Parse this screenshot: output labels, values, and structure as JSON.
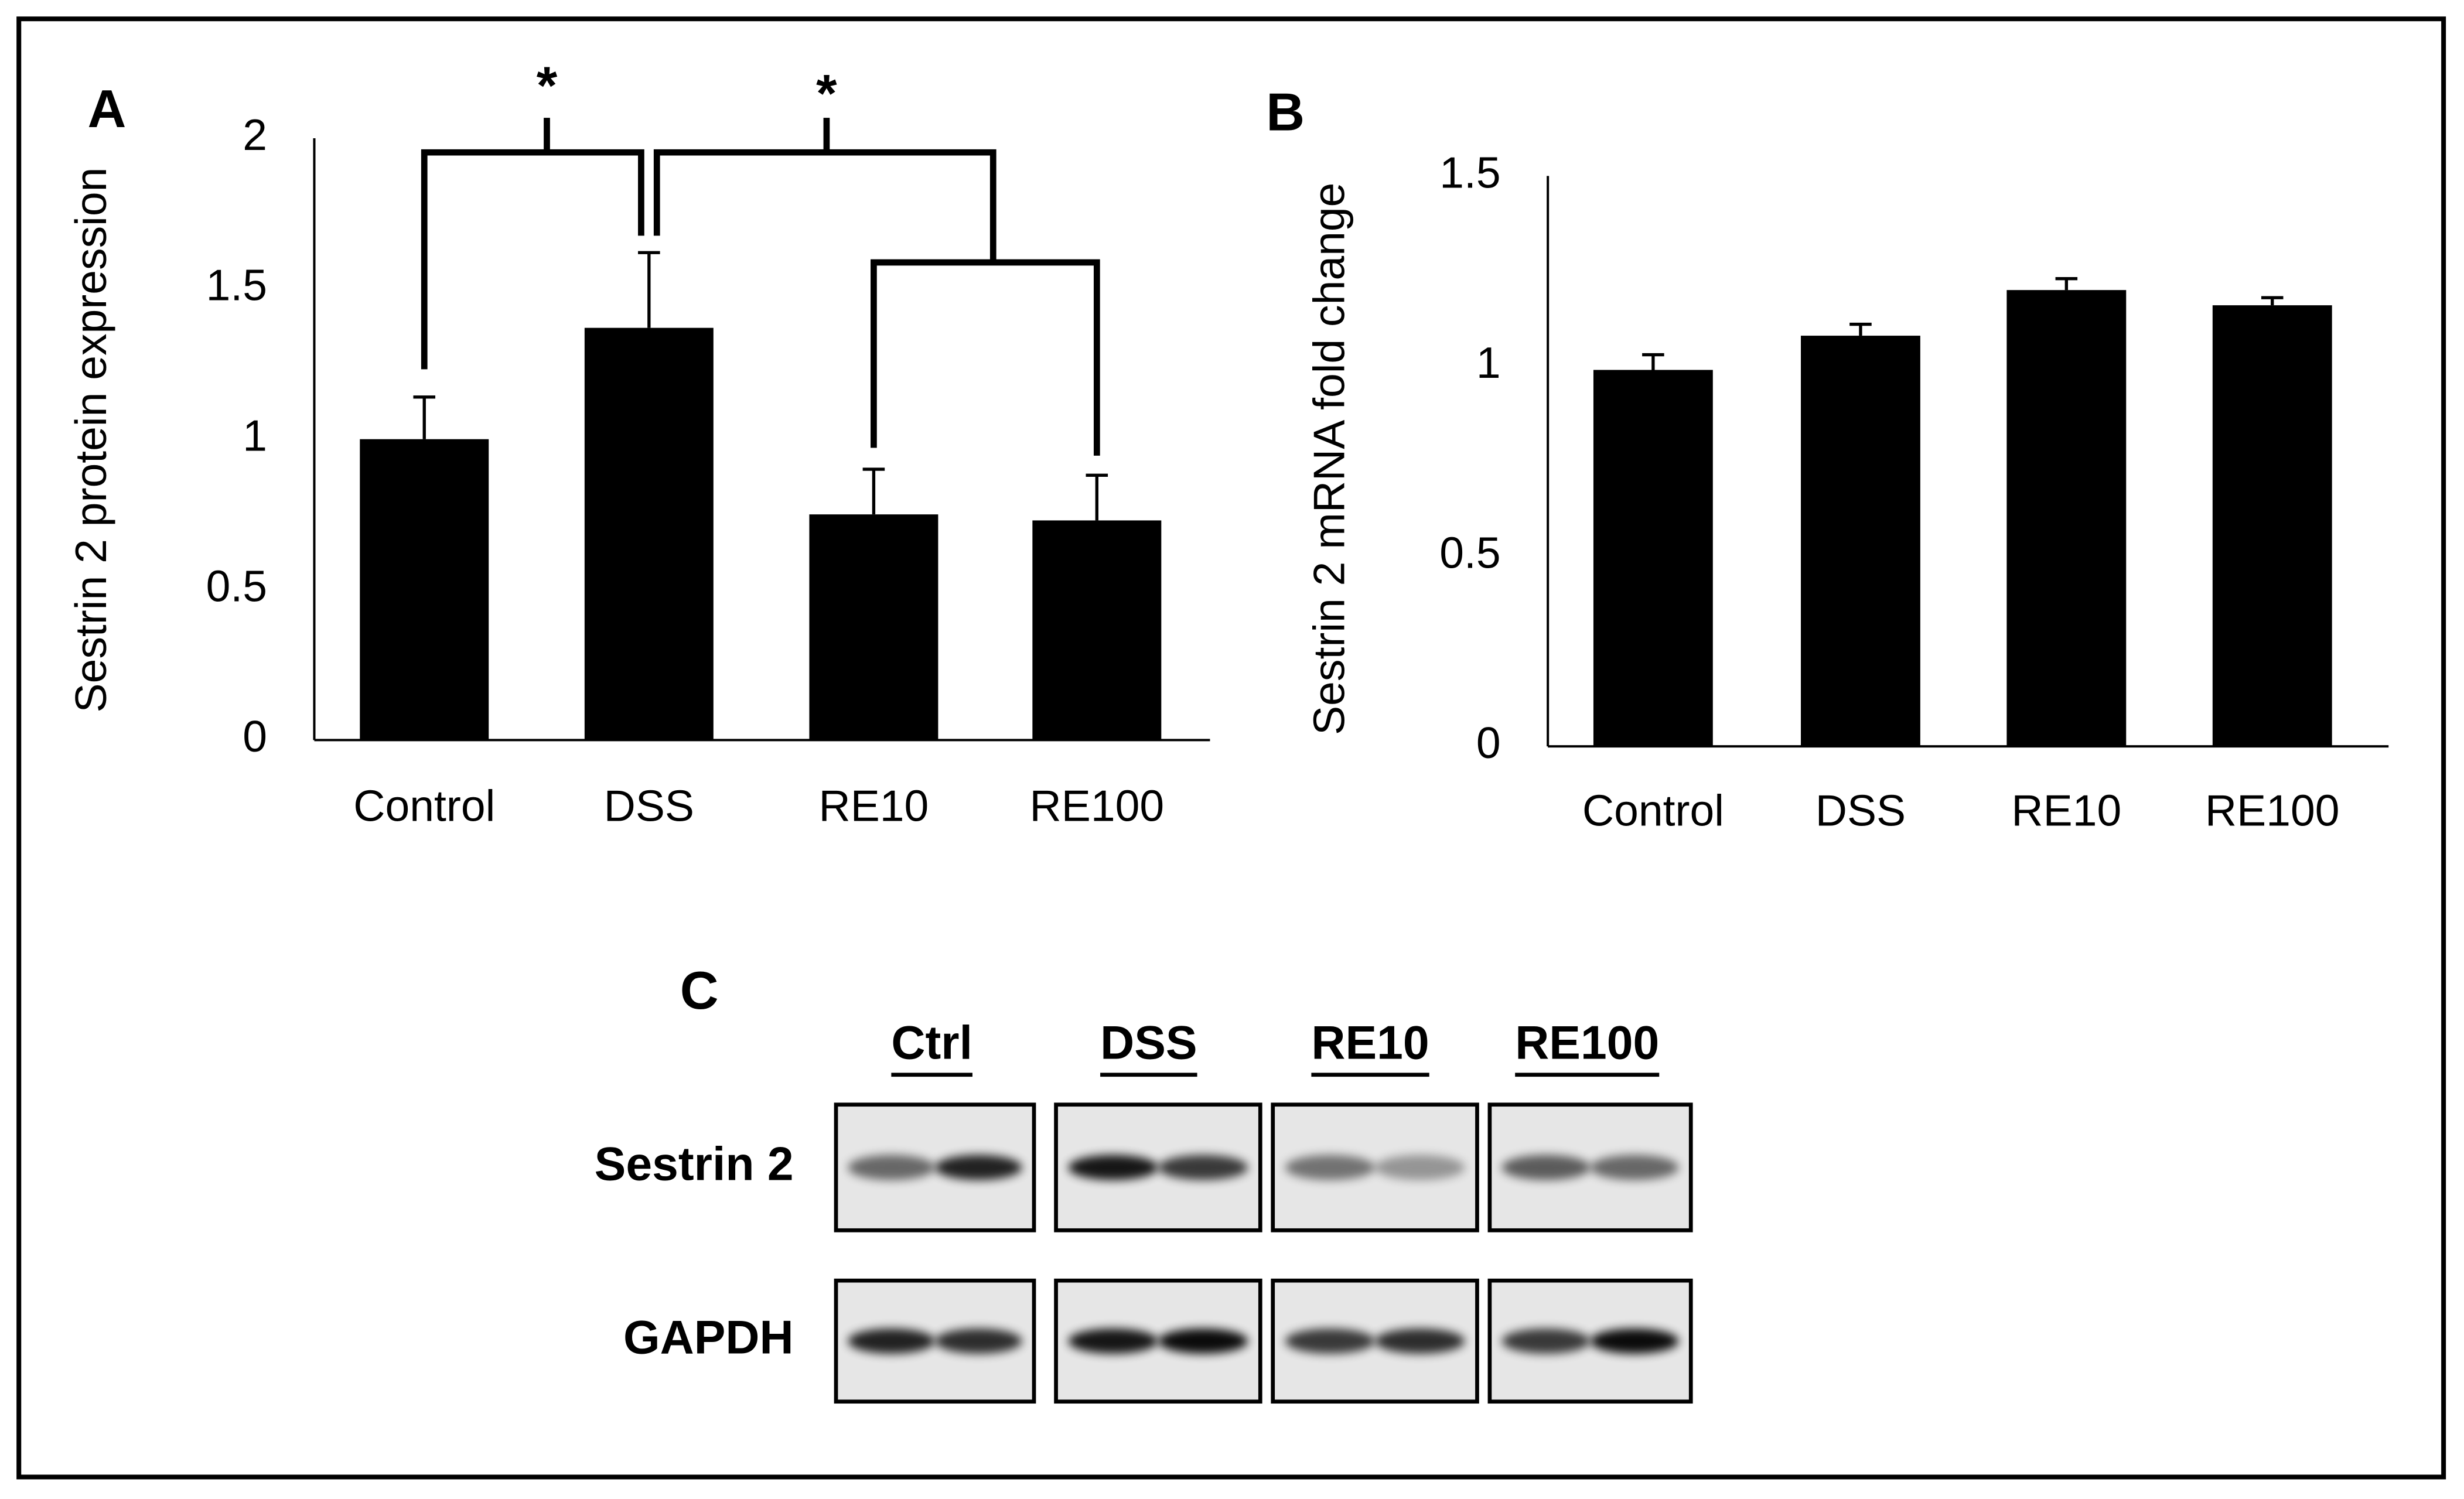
{
  "chart_data": [
    {
      "type": "bar",
      "panel_label": "A",
      "y_label": "Sestrin 2 protein expression",
      "categories": [
        "Control",
        "DSS",
        "RE10",
        "RE100"
      ],
      "values": [
        1.0,
        1.37,
        0.75,
        0.73
      ],
      "errors": [
        0.14,
        0.25,
        0.15,
        0.15
      ],
      "color": "#000000",
      "ylim": [
        0,
        2
      ],
      "yticks": [
        0,
        0.5,
        1,
        1.5,
        2
      ],
      "grid": false,
      "annotations": [
        "*",
        "*"
      ]
    },
    {
      "type": "bar",
      "panel_label": "B",
      "y_label": "Sestrin 2 mRNA fold change",
      "categories": [
        "Control",
        "DSS",
        "RE10",
        "RE100"
      ],
      "values": [
        0.99,
        1.08,
        1.2,
        1.16
      ],
      "errors": [
        0.04,
        0.03,
        0.03,
        0.02
      ],
      "color": "#000000",
      "ylim": [
        0,
        1.5
      ],
      "yticks": [
        0,
        0.5,
        1,
        1.5
      ],
      "grid": false
    }
  ],
  "blot": {
    "label": "C",
    "groups": [
      "Ctrl",
      "DSS",
      "RE10",
      "RE100"
    ],
    "rows": [
      "Sestrin 2",
      "GAPDH"
    ]
  }
}
